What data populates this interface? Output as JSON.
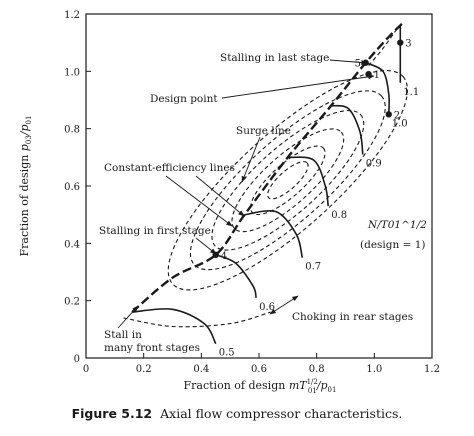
{
  "chart_data": {
    "type": "line",
    "xlabel": "Fraction of design mT01^1/2/p01",
    "ylabel": "Fraction of design p03/p01",
    "xlim": [
      0,
      1.2
    ],
    "ylim": [
      0,
      1.2
    ],
    "x_ticks": [
      "0",
      "0.2",
      "0.4",
      "0.6",
      "0.8",
      "1.0",
      "1.2"
    ],
    "y_ticks": [
      "0",
      "0.2",
      "0.4",
      "0.6",
      "0.8",
      "1.0",
      "1.2"
    ],
    "grid": false,
    "surge_line": [
      [
        0.16,
        0.16
      ],
      [
        0.3,
        0.28
      ],
      [
        0.45,
        0.36
      ],
      [
        0.55,
        0.5
      ],
      [
        0.7,
        0.7
      ],
      [
        0.85,
        0.88
      ],
      [
        0.97,
        1.03
      ],
      [
        1.05,
        1.12
      ],
      [
        1.1,
        1.17
      ]
    ],
    "speed_lines": [
      {
        "label": "0.5",
        "points": [
          [
            0.16,
            0.16
          ],
          [
            0.3,
            0.17
          ],
          [
            0.41,
            0.12
          ],
          [
            0.45,
            0.05
          ]
        ]
      },
      {
        "label": "0.6",
        "points": [
          [
            0.45,
            0.36
          ],
          [
            0.52,
            0.33
          ],
          [
            0.58,
            0.25
          ],
          [
            0.59,
            0.21
          ]
        ]
      },
      {
        "label": "0.7",
        "points": [
          [
            0.55,
            0.5
          ],
          [
            0.66,
            0.51
          ],
          [
            0.73,
            0.43
          ],
          [
            0.75,
            0.35
          ]
        ]
      },
      {
        "label": "0.8",
        "points": [
          [
            0.7,
            0.7
          ],
          [
            0.79,
            0.69
          ],
          [
            0.83,
            0.6
          ],
          [
            0.84,
            0.53
          ]
        ]
      },
      {
        "label": "0.9",
        "points": [
          [
            0.85,
            0.88
          ],
          [
            0.91,
            0.87
          ],
          [
            0.95,
            0.79
          ],
          [
            0.96,
            0.71
          ]
        ]
      },
      {
        "label": "1.0",
        "points": [
          [
            0.97,
            1.03
          ],
          [
            1.03,
            1.0
          ],
          [
            1.05,
            0.92
          ],
          [
            1.05,
            0.85
          ]
        ]
      },
      {
        "label": "1.1",
        "points": [
          [
            1.09,
            1.16
          ],
          [
            1.09,
            1.08
          ],
          [
            1.09,
            1.0
          ],
          [
            1.09,
            0.96
          ]
        ]
      }
    ],
    "operating_points": [
      {
        "label": "1",
        "x": 0.98,
        "y": 0.99
      },
      {
        "label": "2",
        "x": 1.05,
        "y": 0.85
      },
      {
        "label": "3",
        "x": 1.09,
        "y": 1.1
      },
      {
        "label": "4",
        "x": 0.45,
        "y": 0.36
      },
      {
        "label": "5",
        "x": 0.97,
        "y": 1.03
      }
    ],
    "annotations": {
      "stalling_last": "Stalling in last stage",
      "design_point": "Design point",
      "surge_line": "Surge line",
      "const_eff": "Constant-efficiency lines",
      "stalling_first": "Stalling in first stage",
      "speed_param": "N/T01^1/2",
      "design_eq": "(design = 1)",
      "choking": "Choking in rear stages",
      "stall_many_1": "Stall in",
      "stall_many_2": "many front stages"
    }
  },
  "caption": {
    "number": "Figure 5.12",
    "text": "Axial flow compressor characteristics."
  }
}
